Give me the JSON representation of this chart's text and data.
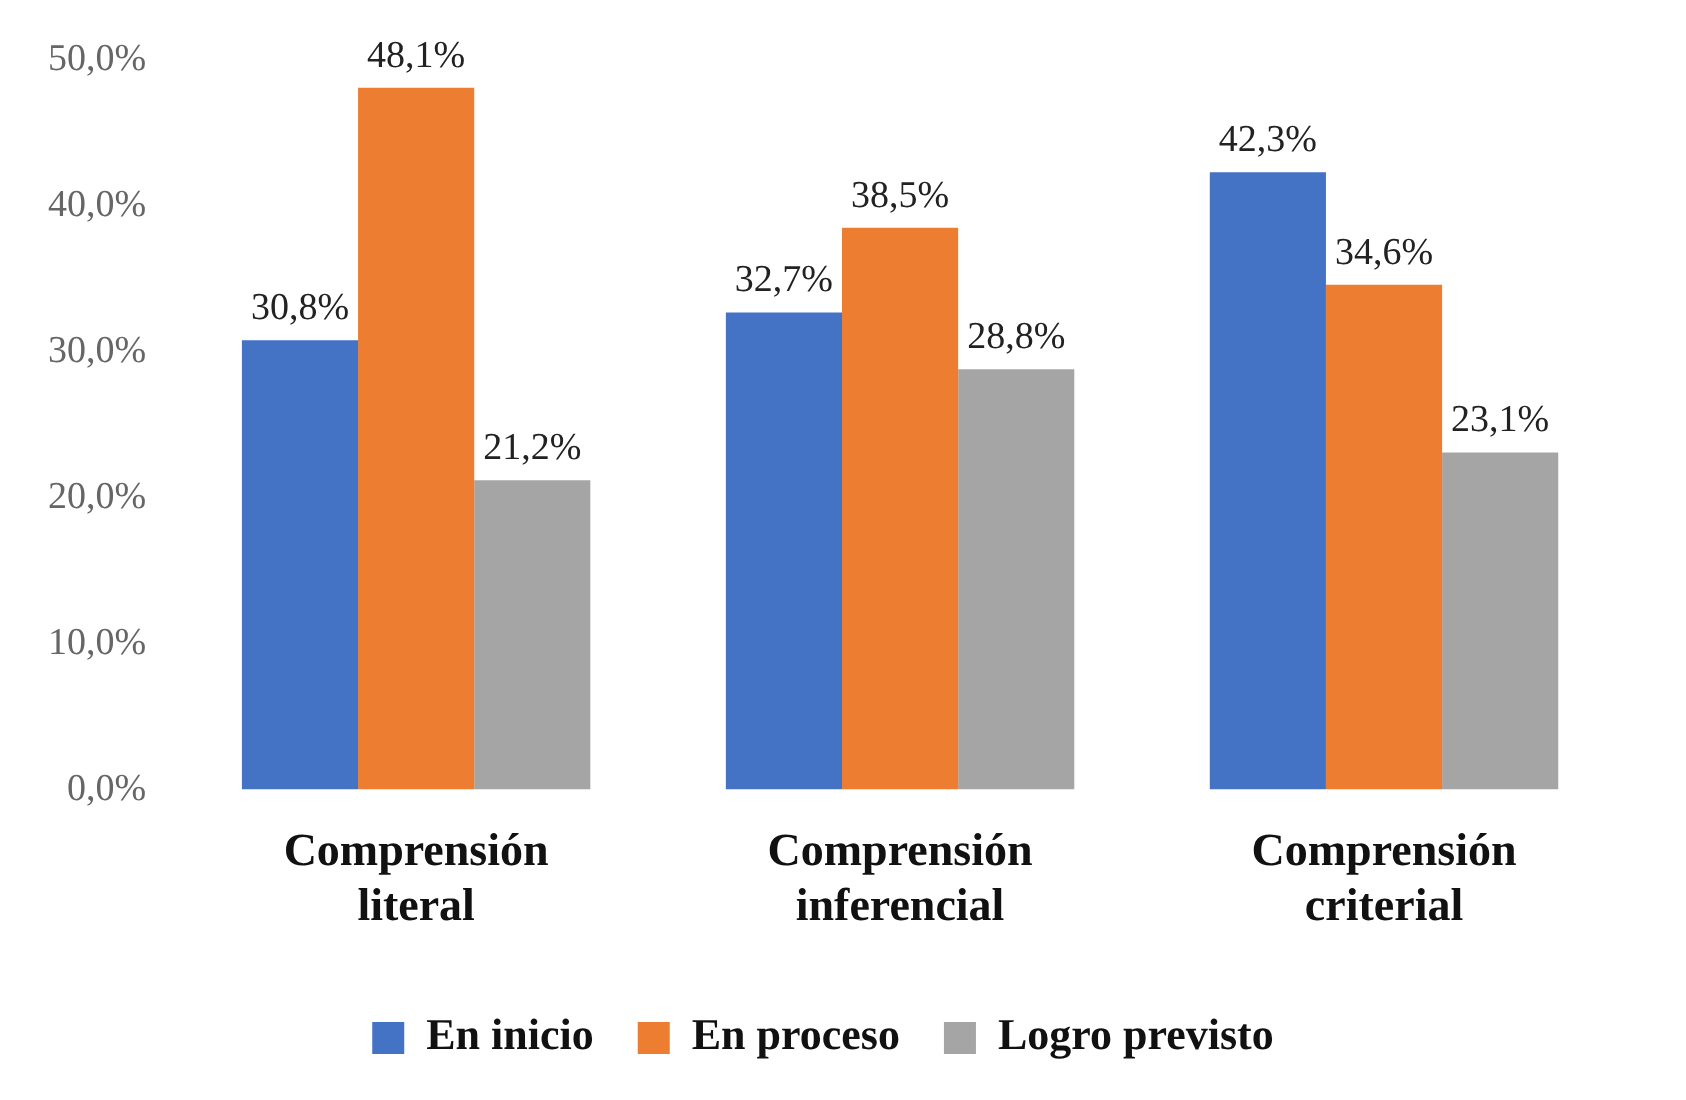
{
  "chart_data": {
    "type": "bar",
    "categories": [
      "Comprensión literal",
      "Comprensión inferencial",
      "Comprensión criterial"
    ],
    "series": [
      {
        "name": "En inicio",
        "color": "#4472c4",
        "values": [
          30.8,
          32.7,
          42.3
        ],
        "value_labels": [
          "30,8%",
          "32,7%",
          "42,3%"
        ]
      },
      {
        "name": "En proceso",
        "color": "#ed7d31",
        "values": [
          48.1,
          38.5,
          34.6
        ],
        "value_labels": [
          "48,1%",
          "38,5%",
          "34,6%"
        ]
      },
      {
        "name": "Logro previsto",
        "color": "#a5a5a5",
        "values": [
          21.2,
          28.8,
          23.1
        ],
        "value_labels": [
          "21,2%",
          "28,8%",
          "23,1%"
        ]
      }
    ],
    "ylim": [
      0,
      50
    ],
    "yticks": [
      {
        "value": 0,
        "label": "0,0%"
      },
      {
        "value": 10,
        "label": "10,0%"
      },
      {
        "value": 20,
        "label": "20,0%"
      },
      {
        "value": 30,
        "label": "30,0%"
      },
      {
        "value": 40,
        "label": "40,0%"
      },
      {
        "value": 50,
        "label": "50,0%"
      }
    ],
    "grid": false,
    "legend": "bottom"
  }
}
